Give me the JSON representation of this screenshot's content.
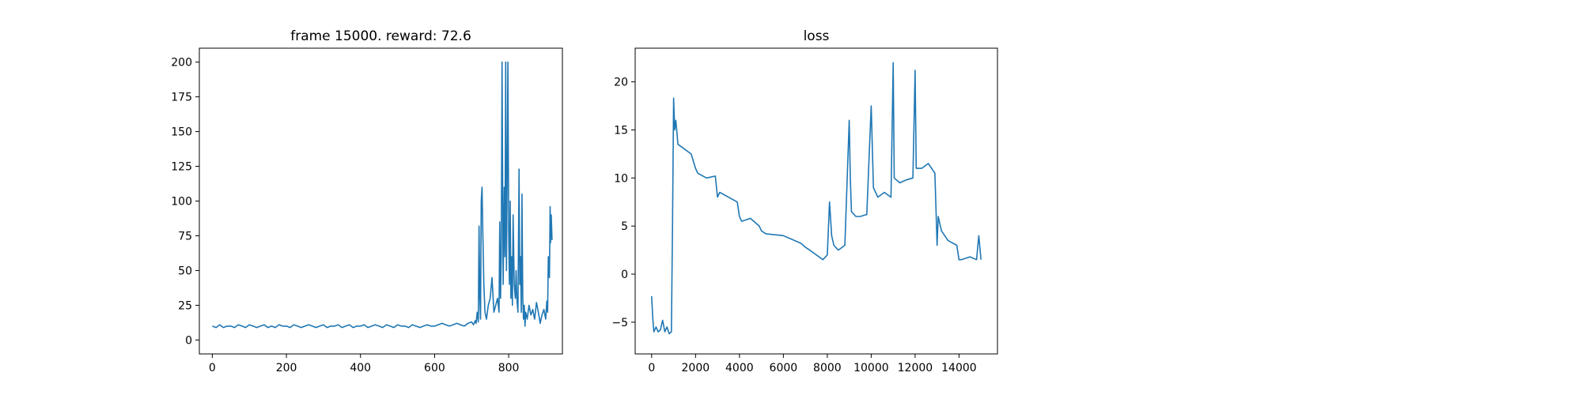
{
  "chart_data": [
    {
      "type": "line",
      "title": "frame 15000. reward: 72.6",
      "xlabel": "",
      "ylabel": "",
      "xlim": [
        -35,
        945
      ],
      "ylim": [
        -10,
        210
      ],
      "grid": false,
      "color": "#1f77b4",
      "xticks": [
        0,
        200,
        400,
        600,
        800
      ],
      "yticks": [
        0,
        25,
        50,
        75,
        100,
        125,
        150,
        175,
        200
      ],
      "series": [
        {
          "name": "",
          "x": [
            0,
            10,
            20,
            30,
            40,
            50,
            60,
            70,
            80,
            90,
            100,
            110,
            120,
            130,
            140,
            150,
            160,
            170,
            180,
            190,
            200,
            210,
            220,
            230,
            240,
            250,
            260,
            270,
            280,
            290,
            300,
            310,
            320,
            330,
            340,
            350,
            360,
            370,
            380,
            390,
            400,
            410,
            420,
            430,
            440,
            450,
            460,
            470,
            480,
            490,
            500,
            510,
            520,
            530,
            540,
            550,
            560,
            570,
            580,
            590,
            600,
            610,
            620,
            630,
            640,
            650,
            660,
            670,
            680,
            690,
            700,
            705,
            710,
            712,
            715,
            718,
            720,
            722,
            724,
            726,
            728,
            730,
            733,
            736,
            740,
            745,
            750,
            755,
            760,
            765,
            770,
            774,
            776,
            778,
            780,
            782,
            785,
            788,
            790,
            792,
            794,
            796,
            798,
            800,
            802,
            804,
            806,
            808,
            810,
            812,
            815,
            818,
            820,
            822,
            825,
            828,
            830,
            832,
            834,
            836,
            838,
            840,
            842,
            844,
            846,
            850,
            855,
            860,
            865,
            870,
            875,
            880,
            885,
            890,
            895,
            900,
            903,
            905,
            907,
            910,
            912,
            913,
            915,
            917
          ],
          "y": [
            10,
            9,
            11,
            9,
            10,
            10,
            9,
            11,
            10,
            9,
            11,
            10,
            9,
            10,
            11,
            9,
            10,
            9,
            11,
            10,
            10,
            9,
            11,
            10,
            9,
            10,
            11,
            10,
            9,
            10,
            11,
            9,
            10,
            10,
            11,
            9,
            10,
            11,
            9,
            10,
            10,
            11,
            9,
            10,
            11,
            10,
            9,
            11,
            10,
            9,
            11,
            10,
            10,
            9,
            11,
            10,
            9,
            10,
            11,
            10,
            10,
            11,
            12,
            11,
            10,
            11,
            12,
            11,
            10,
            12,
            13,
            11,
            14,
            12,
            20,
            13,
            82,
            30,
            15,
            100,
            110,
            80,
            40,
            20,
            15,
            25,
            30,
            45,
            20,
            25,
            30,
            20,
            85,
            30,
            60,
            200,
            40,
            110,
            60,
            200,
            50,
            120,
            200,
            80,
            40,
            100,
            30,
            60,
            25,
            90,
            40,
            30,
            50,
            30,
            20,
            123,
            40,
            60,
            20,
            105,
            30,
            15,
            25,
            10,
            20,
            15,
            25,
            18,
            22,
            15,
            27,
            20,
            12,
            18,
            22,
            15,
            28,
            20,
            60,
            45,
            96,
            70,
            90,
            72
          ]
        }
      ]
    },
    {
      "type": "line",
      "title": "loss",
      "xlabel": "",
      "ylabel": "",
      "xlim": [
        -750,
        15750
      ],
      "ylim": [
        -8.3,
        23.5
      ],
      "grid": false,
      "color": "#1f77b4",
      "xticks": [
        0,
        2000,
        4000,
        6000,
        8000,
        10000,
        12000,
        14000
      ],
      "yticks": [
        -5,
        0,
        5,
        10,
        15,
        20
      ],
      "series": [
        {
          "name": "",
          "x": [
            0,
            50,
            100,
            200,
            300,
            400,
            500,
            600,
            700,
            800,
            900,
            950,
            1000,
            1050,
            1100,
            1200,
            1500,
            1800,
            2000,
            2100,
            2500,
            2900,
            3000,
            3100,
            3500,
            3900,
            4000,
            4100,
            4500,
            4900,
            5000,
            5200,
            6000,
            6800,
            7000,
            7200,
            7800,
            8000,
            8100,
            8200,
            8300,
            8500,
            8800,
            9000,
            9050,
            9100,
            9300,
            9500,
            9800,
            10000,
            10100,
            10300,
            10600,
            10900,
            11000,
            11050,
            11300,
            11600,
            11900,
            12000,
            12050,
            12300,
            12600,
            12900,
            13000,
            13050,
            13200,
            13500,
            13900,
            14000,
            14100,
            14500,
            14800,
            14900,
            15000
          ],
          "y": [
            -2.3,
            -4.5,
            -6,
            -5.5,
            -6,
            -5.8,
            -4.8,
            -6,
            -5.5,
            -6.2,
            -6,
            5,
            18.3,
            15,
            16,
            13.5,
            13,
            12.5,
            11,
            10.5,
            10,
            10.2,
            8,
            8.5,
            8,
            7.5,
            6,
            5.5,
            5.8,
            5,
            4.5,
            4.2,
            4,
            3.2,
            2.8,
            2.5,
            1.5,
            2,
            7.5,
            4,
            3,
            2.5,
            3,
            16,
            10,
            6.5,
            6,
            6,
            6.2,
            17.5,
            9,
            8,
            8.5,
            8,
            22,
            10,
            9.5,
            9.8,
            10,
            21.2,
            11,
            11,
            11.5,
            10.5,
            3,
            6,
            4.5,
            3.5,
            3,
            1.5,
            1.5,
            1.8,
            1.5,
            4,
            1.5
          ]
        }
      ]
    }
  ]
}
